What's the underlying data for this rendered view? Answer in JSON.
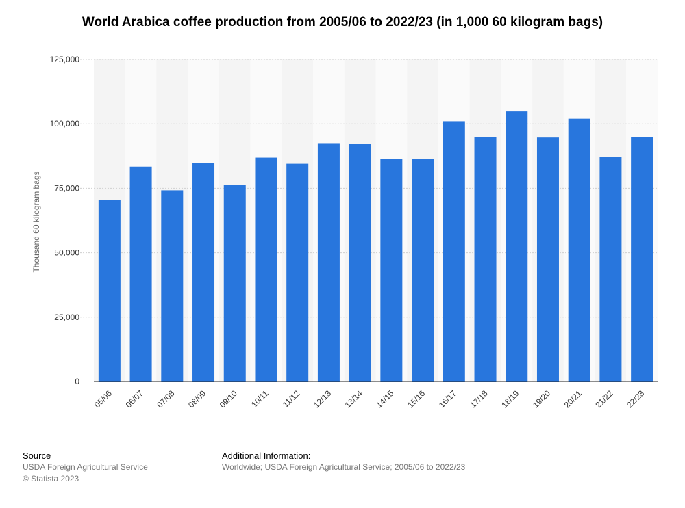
{
  "title": "World Arabica coffee production from 2005/06 to 2022/23 (in 1,000 60 kilogram bags)",
  "chart_data": {
    "type": "bar",
    "title": "World Arabica coffee production from 2005/06 to 2022/23 (in 1,000 60 kilogram bags)",
    "xlabel": "",
    "ylabel": "Thousand 60 kilogram bags",
    "ylim": [
      0,
      125000
    ],
    "yticks": [
      0,
      25000,
      50000,
      75000,
      100000,
      125000
    ],
    "ytick_labels": [
      "0",
      "25,000",
      "50,000",
      "75,000",
      "100,000",
      "125,000"
    ],
    "grid": true,
    "bar_color": "#2876dd",
    "categories": [
      "05/06",
      "06/07",
      "07/08",
      "08/09",
      "09/10",
      "10/11",
      "11/12",
      "12/13",
      "13/14",
      "14/15",
      "15/16",
      "16/17",
      "17/18",
      "18/19",
      "19/20",
      "20/21",
      "21/22",
      "22/23"
    ],
    "values": [
      70500,
      83400,
      74200,
      84900,
      76400,
      86900,
      84500,
      92500,
      92200,
      86500,
      86300,
      101000,
      95000,
      104800,
      94700,
      102000,
      87200,
      95000
    ]
  },
  "footer": {
    "source_heading": "Source",
    "source_line1": "USDA Foreign Agricultural Service",
    "source_line2": "© Statista 2023",
    "info_heading": "Additional Information:",
    "info_line1": "Worldwide; USDA Foreign Agricultural Service; 2005/06 to 2022/23"
  }
}
